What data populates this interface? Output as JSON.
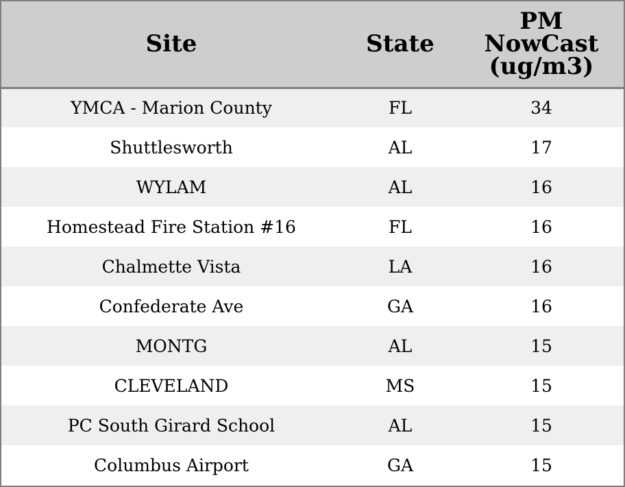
{
  "chart_data": {
    "type": "table",
    "columns": [
      "Site",
      "State",
      "PM NowCast (ug/m3)"
    ],
    "header_lines": {
      "site": "Site",
      "state": "State",
      "pm": [
        "PM",
        "NowCast",
        "(ug/m3)"
      ]
    },
    "rows": [
      {
        "site": "YMCA - Marion County",
        "state": "FL",
        "pm": "34"
      },
      {
        "site": "Shuttlesworth",
        "state": "AL",
        "pm": "17"
      },
      {
        "site": "WYLAM",
        "state": "AL",
        "pm": "16"
      },
      {
        "site": "Homestead Fire Station #16",
        "state": "FL",
        "pm": "16"
      },
      {
        "site": "Chalmette Vista",
        "state": "LA",
        "pm": "16"
      },
      {
        "site": "Confederate Ave",
        "state": "GA",
        "pm": "16"
      },
      {
        "site": "MONTG",
        "state": "AL",
        "pm": "15"
      },
      {
        "site": "CLEVELAND",
        "state": "MS",
        "pm": "15"
      },
      {
        "site": "PC South Girard School",
        "state": "AL",
        "pm": "15"
      },
      {
        "site": "Columbus Airport",
        "state": "GA",
        "pm": "15"
      }
    ],
    "colors": {
      "header_bg": "#cecece",
      "row_alt_bg": "#efefef",
      "row_bg": "#ffffff",
      "border": "#7f7f7f"
    }
  }
}
